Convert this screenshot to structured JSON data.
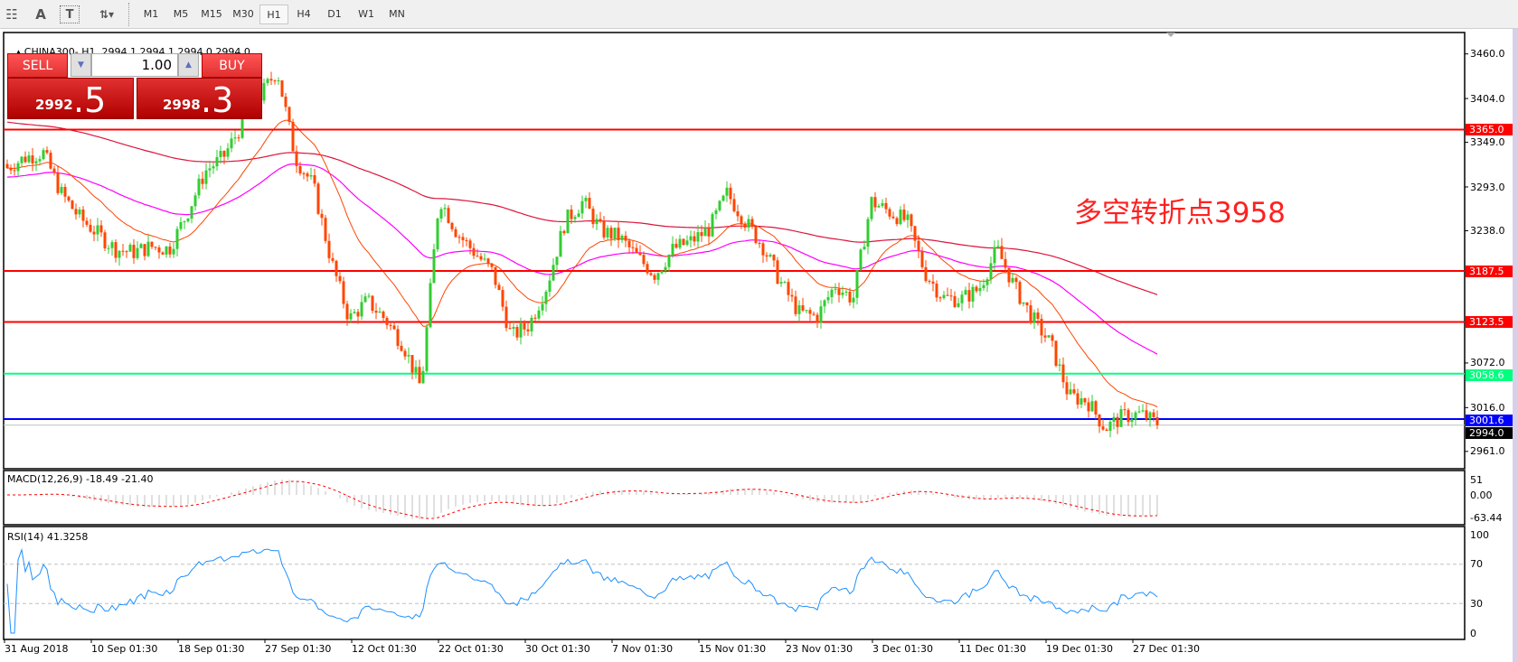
{
  "toolbar": {
    "tools": [
      {
        "name": "periods-grid-icon",
        "glyph": "☷"
      },
      {
        "name": "text-icon",
        "glyph": "A"
      },
      {
        "name": "text-label-icon",
        "glyph": "T"
      },
      {
        "name": "arrows-icon",
        "glyph": "⇅▾"
      }
    ],
    "timeframes": [
      "M1",
      "M5",
      "M15",
      "M30",
      "H1",
      "H4",
      "D1",
      "W1",
      "MN"
    ],
    "active_timeframe": "H1"
  },
  "chart": {
    "symbol_line": "CHINA300-,H1  2994.1 2994.1 2994.0 2994.0",
    "annotation": "多空转折点3958"
  },
  "trade_panel": {
    "sell_label": "SELL",
    "buy_label": "BUY",
    "volume": "1.00",
    "sell_price_main": "2992",
    "sell_price_frac": ".5",
    "buy_price_main": "2998",
    "buy_price_frac": ".3"
  },
  "colors": {
    "bull": "#32cd32",
    "bear": "#ff4500",
    "ma_fast": "#ff4500",
    "ma_mid": "#ff00ff",
    "ma_slow": "#dc143c",
    "rsi": "#1e90ff",
    "macd_hist": "#c0c0c0",
    "macd_signal": "#ff0000"
  },
  "chart_data": {
    "type": "candlestick",
    "ylim": [
      2940,
      3485
    ],
    "price_ticks": [
      "3460.0",
      "3404.0",
      "3349.0",
      "3293.0",
      "3238.0",
      "3072.0",
      "3016.0",
      "2961.0"
    ],
    "levels": [
      {
        "value": 3365.0,
        "label": "3365.0",
        "color": "#ff0000"
      },
      {
        "value": 3187.5,
        "label": "3187.5",
        "color": "#ff0000"
      },
      {
        "value": 3123.5,
        "label": "3123.5",
        "color": "#ff0000"
      },
      {
        "value": 3058.6,
        "label": "3058.6",
        "color": "#00ff7f"
      },
      {
        "value": 2994.0,
        "label": "2994.0",
        "color": "#000000"
      },
      {
        "value": 3001.6,
        "label": "3001.6",
        "color": "#0000ff"
      }
    ],
    "x_tick_labels": [
      "31 Aug 2018",
      "10 Sep 01:30",
      "18 Sep 01:30",
      "27 Sep 01:30",
      "12 Oct 01:30",
      "22 Oct 01:30",
      "30 Oct 01:30",
      "7 Nov 01:30",
      "15 Nov 01:30",
      "23 Nov 01:30",
      "3 Dec 01:30",
      "11 Dec 01:30",
      "19 Dec 01:30",
      "27 Dec 01:30"
    ],
    "approx_closes": [
      3317,
      3330,
      3336,
      3285,
      3255,
      3235,
      3215,
      3211,
      3218,
      3215,
      3260,
      3313,
      3330,
      3370,
      3405,
      3440,
      3330,
      3295,
      3200,
      3127,
      3150,
      3127,
      3095,
      3040,
      3280,
      3235,
      3210,
      3185,
      3105,
      3120,
      3170,
      3250,
      3275,
      3238,
      3230,
      3205,
      3183,
      3215,
      3225,
      3240,
      3285,
      3250,
      3218,
      3172,
      3135,
      3130,
      3170,
      3152,
      3275,
      3262,
      3250,
      3185,
      3154,
      3152,
      3165,
      3215,
      3166,
      3127,
      3095,
      3030,
      3025,
      2990,
      3005,
      3008,
      2994
    ],
    "last": {
      "open": 2994.1,
      "high": 2994.1,
      "low": 2994.0,
      "close": 2994.0
    },
    "macd": {
      "label": "MACD(12,26,9) -18.49 -21.40",
      "ticks": [
        "51",
        "0.00",
        "-63.44"
      ],
      "ylim": [
        -63.44,
        51
      ]
    },
    "rsi": {
      "label": "RSI(14) 41.3258",
      "ticks": [
        "100",
        "70",
        "30",
        "0"
      ],
      "ylim": [
        0,
        100
      ],
      "levels": [
        70,
        30
      ]
    }
  }
}
